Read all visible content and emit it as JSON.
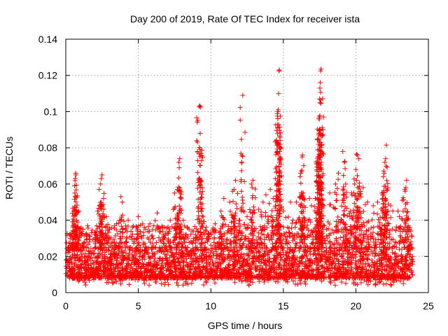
{
  "chart_data": {
    "type": "scatter",
    "title": "Day 200 of 2019, Rate Of TEC Index for receiver ista",
    "xlabel": "GPS time / hours",
    "ylabel": "ROTI / TECUs",
    "xlim": [
      0,
      25
    ],
    "ylim": [
      0,
      0.14
    ],
    "x_ticks": [
      0,
      5,
      10,
      15,
      20,
      25
    ],
    "x_tick_labels": [
      "0",
      "5",
      "10",
      "15",
      "20",
      "25"
    ],
    "y_ticks": [
      0,
      0.02,
      0.04,
      0.06,
      0.08,
      0.1,
      0.12,
      0.14
    ],
    "y_tick_labels": [
      "0",
      "0.02",
      "0.04",
      "0.06",
      "0.08",
      "0.1",
      "0.12",
      "0.14"
    ],
    "grid": true,
    "marker": "+",
    "color": "#ff0000",
    "series": [
      {
        "name": "ROTI",
        "baseline_band": [
          0.008,
          0.025
        ],
        "points": [
          [
            0.1,
            0.022
          ],
          [
            0.2,
            0.025
          ],
          [
            0.3,
            0.03
          ],
          [
            0.5,
            0.036
          ],
          [
            0.6,
            0.059
          ],
          [
            0.62,
            0.055
          ],
          [
            0.65,
            0.063
          ],
          [
            0.68,
            0.066
          ],
          [
            0.7,
            0.065
          ],
          [
            0.75,
            0.04
          ],
          [
            0.9,
            0.045
          ],
          [
            1.2,
            0.035
          ],
          [
            1.5,
            0.037
          ],
          [
            2.0,
            0.033
          ],
          [
            2.2,
            0.045
          ],
          [
            2.3,
            0.057
          ],
          [
            2.4,
            0.06
          ],
          [
            2.45,
            0.063
          ],
          [
            2.5,
            0.065
          ],
          [
            2.6,
            0.052
          ],
          [
            2.8,
            0.042
          ],
          [
            3.0,
            0.035
          ],
          [
            3.5,
            0.038
          ],
          [
            3.8,
            0.053
          ],
          [
            3.9,
            0.05
          ],
          [
            4.3,
            0.04
          ],
          [
            4.6,
            0.036
          ],
          [
            5.0,
            0.042
          ],
          [
            5.3,
            0.038
          ],
          [
            5.5,
            0.035
          ],
          [
            5.8,
            0.038
          ],
          [
            6.3,
            0.044
          ],
          [
            6.7,
            0.036
          ],
          [
            7.2,
            0.04
          ],
          [
            7.5,
            0.055
          ],
          [
            7.7,
            0.057
          ],
          [
            7.8,
            0.072
          ],
          [
            7.82,
            0.069
          ],
          [
            7.85,
            0.074
          ],
          [
            8.1,
            0.04
          ],
          [
            8.5,
            0.035
          ],
          [
            8.8,
            0.034
          ],
          [
            9.2,
            0.1028
          ],
          [
            9.25,
            0.1032
          ],
          [
            9.3,
            0.1025
          ],
          [
            9.4,
            0.0465
          ],
          [
            9.7,
            0.034
          ],
          [
            10.3,
            0.038
          ],
          [
            10.7,
            0.045
          ],
          [
            10.9,
            0.052
          ],
          [
            11.3,
            0.05
          ],
          [
            11.5,
            0.056
          ],
          [
            11.6,
            0.057
          ],
          [
            11.7,
            0.062
          ],
          [
            12.0,
            0.04
          ],
          [
            12.1,
            0.045
          ],
          [
            12.2,
            0.109
          ],
          [
            12.5,
            0.042
          ],
          [
            12.8,
            0.06
          ],
          [
            12.85,
            0.058
          ],
          [
            12.9,
            0.062
          ],
          [
            13.3,
            0.046
          ],
          [
            13.6,
            0.05
          ],
          [
            13.8,
            0.054
          ],
          [
            14.1,
            0.057
          ],
          [
            14.3,
            0.052
          ],
          [
            14.6,
            0.0975
          ],
          [
            14.62,
            0.1
          ],
          [
            14.65,
            0.101
          ],
          [
            14.67,
            0.11
          ],
          [
            14.7,
            0.1225
          ],
          [
            14.72,
            0.123
          ],
          [
            15.0,
            0.045
          ],
          [
            15.5,
            0.05
          ],
          [
            15.9,
            0.05
          ],
          [
            16.2,
            0.066
          ],
          [
            16.25,
            0.067
          ],
          [
            16.3,
            0.075
          ],
          [
            16.32,
            0.076
          ],
          [
            16.5,
            0.047
          ],
          [
            16.8,
            0.052
          ],
          [
            17.2,
            0.052
          ],
          [
            17.4,
            0.075
          ],
          [
            17.42,
            0.082
          ],
          [
            17.45,
            0.096
          ],
          [
            17.47,
            0.097
          ],
          [
            17.5,
            0.107
          ],
          [
            17.52,
            0.113
          ],
          [
            17.55,
            0.116
          ],
          [
            17.57,
            0.1225
          ],
          [
            17.6,
            0.1235
          ],
          [
            17.8,
            0.048
          ],
          [
            18.2,
            0.055
          ],
          [
            18.6,
            0.06
          ],
          [
            18.8,
            0.066
          ],
          [
            19.1,
            0.078
          ],
          [
            19.2,
            0.072
          ],
          [
            19.3,
            0.06
          ],
          [
            19.7,
            0.055
          ],
          [
            19.9,
            0.06
          ],
          [
            20.0,
            0.068
          ],
          [
            20.05,
            0.0765
          ],
          [
            20.1,
            0.076
          ],
          [
            20.2,
            0.074
          ],
          [
            20.5,
            0.058
          ],
          [
            20.8,
            0.05
          ],
          [
            21.2,
            0.048
          ],
          [
            21.5,
            0.05
          ],
          [
            21.8,
            0.055
          ],
          [
            21.9,
            0.064
          ],
          [
            21.95,
            0.066
          ],
          [
            22.0,
            0.072
          ],
          [
            22.05,
            0.074
          ],
          [
            22.1,
            0.0815
          ],
          [
            22.4,
            0.048
          ],
          [
            22.9,
            0.045
          ],
          [
            23.2,
            0.051
          ],
          [
            23.4,
            0.056
          ],
          [
            23.45,
            0.058
          ],
          [
            23.5,
            0.062
          ],
          [
            23.8,
            0.028
          ]
        ]
      }
    ]
  }
}
